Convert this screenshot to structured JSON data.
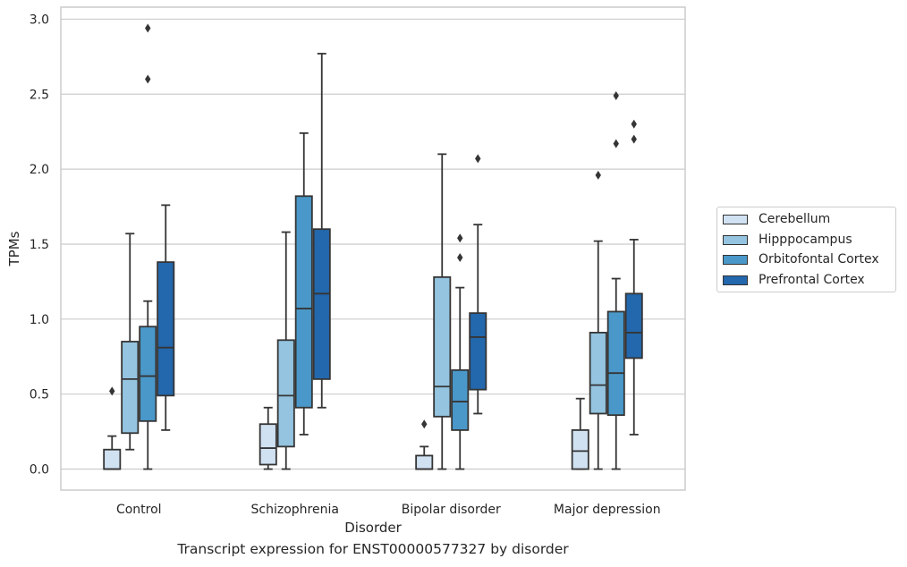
{
  "chart_data": {
    "type": "box",
    "title": "",
    "xlabel": "Disorder",
    "ylabel": "TPMs",
    "ylim": [
      -0.14,
      3.08
    ],
    "yticks": [
      0.0,
      0.5,
      1.0,
      1.5,
      2.0,
      2.5,
      3.0
    ],
    "ytick_labels": [
      "0.0",
      "0.5",
      "1.0",
      "1.5",
      "2.0",
      "2.5",
      "3.0"
    ],
    "grid": "horizontal",
    "legend_position": "right",
    "categories": [
      "Control",
      "Schizophrenia",
      "Bipolar disorder",
      "Major depression"
    ],
    "series": [
      {
        "name": "Cerebellum",
        "color": "#d0e1f2",
        "boxes": [
          {
            "whislo": 0.0,
            "q1": 0.0,
            "med": 0.0,
            "q3": 0.13,
            "whishi": 0.22,
            "fliers": [
              0.52
            ]
          },
          {
            "whislo": 0.0,
            "q1": 0.03,
            "med": 0.14,
            "q3": 0.3,
            "whishi": 0.41,
            "fliers": []
          },
          {
            "whislo": 0.0,
            "q1": 0.0,
            "med": 0.0,
            "q3": 0.09,
            "whishi": 0.15,
            "fliers": [
              0.3
            ]
          },
          {
            "whislo": 0.0,
            "q1": 0.0,
            "med": 0.12,
            "q3": 0.26,
            "whishi": 0.47,
            "fliers": []
          }
        ]
      },
      {
        "name": "Hipppocampus",
        "color": "#94c4df",
        "boxes": [
          {
            "whislo": 0.13,
            "q1": 0.24,
            "med": 0.6,
            "q3": 0.85,
            "whishi": 1.57,
            "fliers": []
          },
          {
            "whislo": 0.0,
            "q1": 0.15,
            "med": 0.49,
            "q3": 0.86,
            "whishi": 1.58,
            "fliers": []
          },
          {
            "whislo": 0.0,
            "q1": 0.35,
            "med": 0.55,
            "q3": 1.28,
            "whishi": 2.1,
            "fliers": []
          },
          {
            "whislo": 0.0,
            "q1": 0.37,
            "med": 0.56,
            "q3": 0.91,
            "whishi": 1.52,
            "fliers": [
              1.96
            ]
          }
        ]
      },
      {
        "name": "Orbitofontal Cortex",
        "color": "#4a98c9",
        "boxes": [
          {
            "whislo": 0.0,
            "q1": 0.32,
            "med": 0.62,
            "q3": 0.95,
            "whishi": 1.12,
            "fliers": [
              2.6,
              2.94
            ]
          },
          {
            "whislo": 0.23,
            "q1": 0.41,
            "med": 1.07,
            "q3": 1.82,
            "whishi": 2.24,
            "fliers": []
          },
          {
            "whislo": 0.0,
            "q1": 0.26,
            "med": 0.45,
            "q3": 0.66,
            "whishi": 1.21,
            "fliers": [
              1.41,
              1.54
            ]
          },
          {
            "whislo": 0.0,
            "q1": 0.36,
            "med": 0.64,
            "q3": 1.05,
            "whishi": 1.27,
            "fliers": [
              2.17,
              2.49
            ]
          }
        ]
      },
      {
        "name": "Prefrontal Cortex",
        "color": "#2367ac",
        "boxes": [
          {
            "whislo": 0.26,
            "q1": 0.49,
            "med": 0.81,
            "q3": 1.38,
            "whishi": 1.76,
            "fliers": []
          },
          {
            "whislo": 0.41,
            "q1": 0.6,
            "med": 1.17,
            "q3": 1.6,
            "whishi": 2.77,
            "fliers": []
          },
          {
            "whislo": 0.37,
            "q1": 0.53,
            "med": 0.88,
            "q3": 1.04,
            "whishi": 1.63,
            "fliers": [
              2.07
            ]
          },
          {
            "whislo": 0.23,
            "q1": 0.74,
            "med": 0.91,
            "q3": 1.17,
            "whishi": 1.53,
            "fliers": [
              2.2,
              2.3
            ]
          }
        ]
      }
    ],
    "caption": "Transcript expression for ENST00000577327 by disorder"
  }
}
